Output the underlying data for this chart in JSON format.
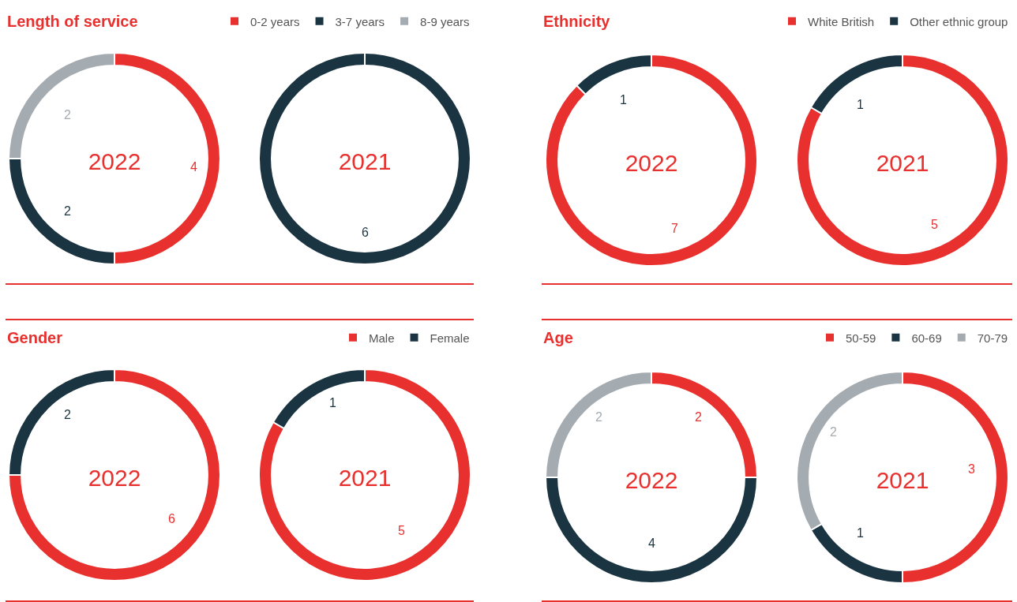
{
  "chart_data": [
    {
      "type": "donut",
      "title": "Length of service",
      "legend": "top right",
      "data_labels": true,
      "categories": [
        "0-2 years",
        "3-7 years",
        "8-9 years"
      ],
      "colors": [
        "#e8312f",
        "#1b3441",
        "#a5acb1"
      ],
      "series": [
        {
          "name": "2022",
          "values": [
            4,
            2,
            2
          ]
        },
        {
          "name": "2021",
          "values": [
            0,
            6,
            0
          ],
          "value_labels": [
            null,
            "6",
            null
          ]
        }
      ]
    },
    {
      "type": "donut",
      "title": "Ethnicity",
      "legend": "top right",
      "data_labels": true,
      "categories": [
        "White British",
        "Other ethnic group"
      ],
      "colors": [
        "#e8312f",
        "#1b3441"
      ],
      "series": [
        {
          "name": "2022",
          "values": [
            7,
            1
          ]
        },
        {
          "name": "2021",
          "values": [
            5,
            1
          ]
        }
      ]
    },
    {
      "type": "donut",
      "title": "Gender",
      "legend": "top right",
      "data_labels": true,
      "categories": [
        "Male",
        "Female"
      ],
      "colors": [
        "#e8312f",
        "#1b3441"
      ],
      "series": [
        {
          "name": "2022",
          "values": [
            6,
            2
          ]
        },
        {
          "name": "2021",
          "values": [
            5,
            1
          ]
        }
      ]
    },
    {
      "type": "donut",
      "title": "Age",
      "legend": "top right",
      "data_labels": true,
      "categories": [
        "50-59",
        "60-69",
        "70-79"
      ],
      "colors": [
        "#e8312f",
        "#1b3441",
        "#a5acb1"
      ],
      "series": [
        {
          "name": "2022",
          "values": [
            2,
            4,
            2
          ]
        },
        {
          "name": "2021",
          "values": [
            3,
            1,
            2
          ]
        }
      ]
    }
  ]
}
